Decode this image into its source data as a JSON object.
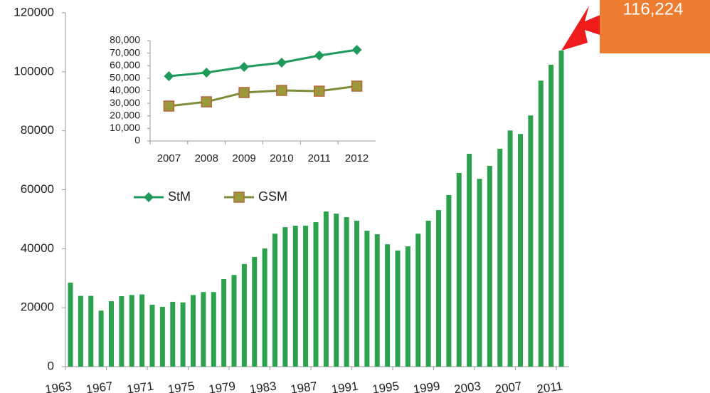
{
  "chart_data": [
    {
      "type": "bar",
      "categories": [
        "1963",
        null,
        null,
        null,
        "1967",
        null,
        null,
        null,
        "1971",
        null,
        null,
        null,
        "1975",
        null,
        null,
        null,
        "1979",
        null,
        null,
        null,
        "1983",
        null,
        null,
        null,
        "1987",
        null,
        null,
        null,
        "1991",
        null,
        null,
        null,
        "1995",
        null,
        null,
        null,
        "1999",
        null,
        null,
        null,
        "2003",
        null,
        null,
        null,
        "2007",
        null,
        null,
        null,
        "2011"
      ],
      "values": [
        28500,
        24000,
        24000,
        19000,
        22200,
        23900,
        24300,
        24500,
        21000,
        20300,
        22000,
        21800,
        24300,
        25300,
        25300,
        29700,
        31100,
        34800,
        37200,
        40100,
        45100,
        47300,
        47800,
        47800,
        49000,
        52600,
        51900,
        50700,
        49500,
        46100,
        44900,
        41500,
        39400,
        40800,
        45100,
        49500,
        53100,
        58200,
        65700,
        72200,
        63700,
        68100,
        73900,
        80100,
        78900,
        85200,
        97000,
        102400,
        107200
      ],
      "color": "#2ca24e",
      "ylim": [
        0,
        120000
      ],
      "yticks": [
        0,
        20000,
        40000,
        60000,
        80000,
        100000,
        120000
      ],
      "annotation": "116,224",
      "annotation_color": "#ed7d31",
      "arrow_color": "#ee1c1c"
    },
    {
      "type": "line",
      "categories": [
        "2007",
        "2008",
        "2009",
        "2010",
        "2011",
        "2012"
      ],
      "series": [
        {
          "name": "StM",
          "color": "#1f9a5c",
          "marker": "diamond",
          "values": [
            51600,
            54500,
            59000,
            62400,
            68100,
            72600
          ]
        },
        {
          "name": "GSM",
          "color": "#7f8c3a",
          "marker": "square",
          "values": [
            27800,
            31200,
            38600,
            40300,
            39700,
            43700
          ]
        }
      ],
      "ylim": [
        0,
        80000
      ],
      "yticks": [
        0,
        {
          "value": 10000,
          "label": "10,000"
        },
        {
          "value": 20000,
          "label": "20,000"
        },
        {
          "value": 30000,
          "label": "30,000"
        },
        {
          "value": 40000,
          "label": "40,000"
        },
        {
          "value": 50000,
          "label": "50,000"
        },
        {
          "value": 60000,
          "label": "60,000"
        },
        {
          "value": 70000,
          "label": "70,000"
        },
        {
          "value": 80000,
          "label": "80,000"
        }
      ]
    }
  ]
}
